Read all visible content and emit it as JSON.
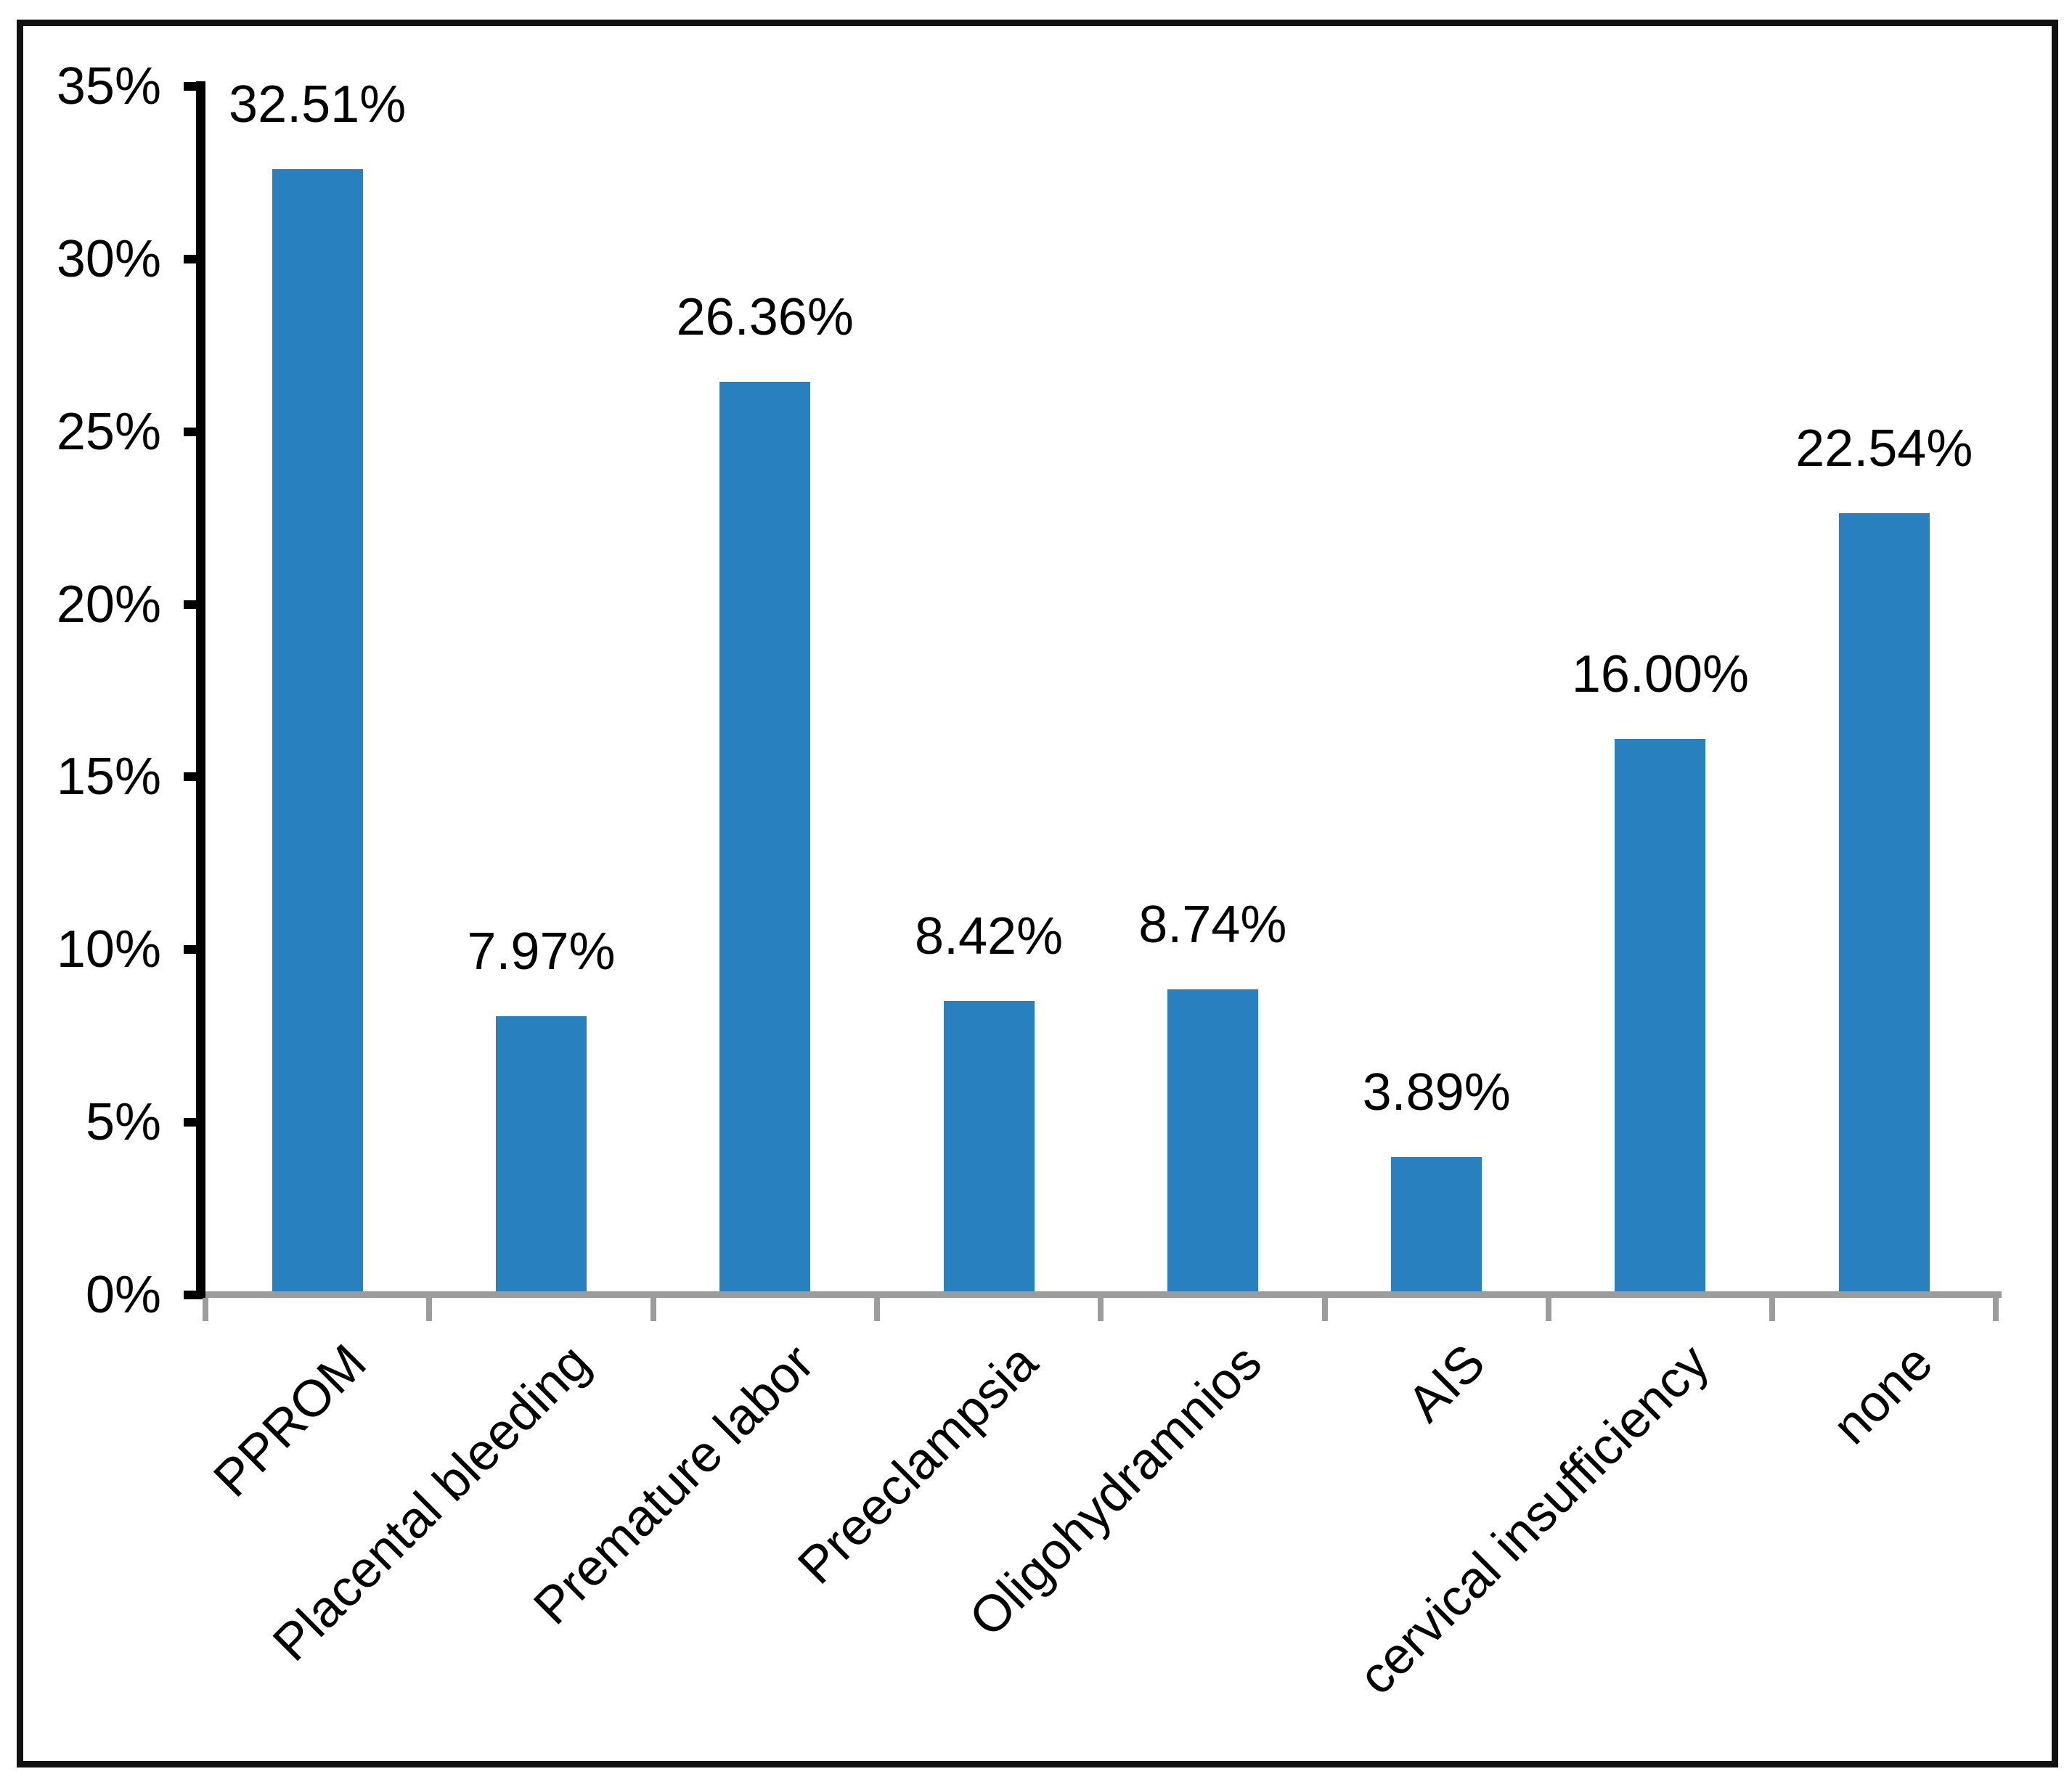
{
  "chart_data": {
    "type": "bar",
    "title": "",
    "xlabel": "",
    "ylabel": "",
    "categories": [
      "PPROM",
      "Placental bleeding",
      "Premature labor",
      "Preeclampsia",
      "Oligohydramnios",
      "AIS",
      "cervical insufficiency",
      "none"
    ],
    "values": [
      32.51,
      7.97,
      26.36,
      8.42,
      8.74,
      3.89,
      16.0,
      22.54
    ],
    "value_labels": [
      "32.51%",
      "7.97%",
      "26.36%",
      "8.42%",
      "8.74%",
      "3.89%",
      "16.00%",
      "22.54%"
    ],
    "ylim": [
      0,
      35
    ],
    "ytick_step": 5,
    "ytick_labels": [
      "0%",
      "5%",
      "10%",
      "15%",
      "20%",
      "25%",
      "30%",
      "35%"
    ],
    "grid": false,
    "legend_position": "none",
    "bar_color": "#2980be",
    "y_axis_color": "#000000",
    "x_axis_color": "#9c9c9c",
    "text_color": "#000000",
    "frame_color": "#111111"
  }
}
